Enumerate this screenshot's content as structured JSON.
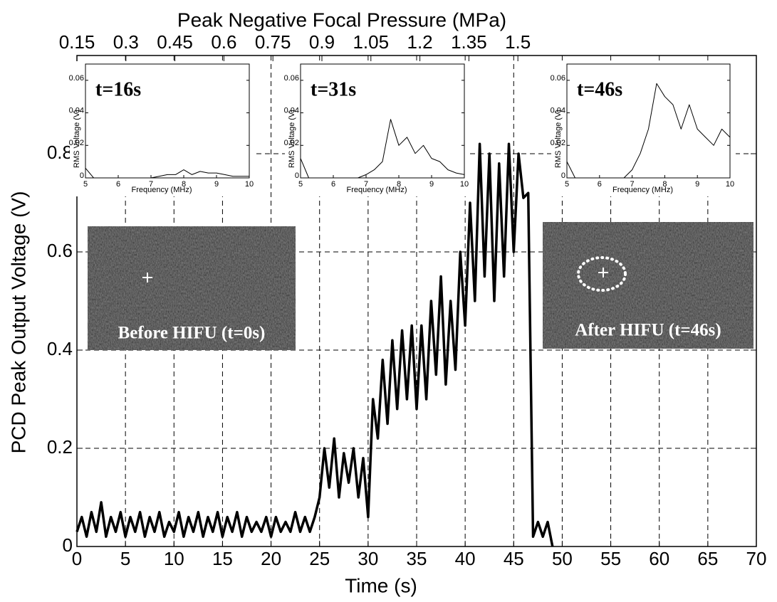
{
  "chart_data": [
    {
      "type": "line",
      "xlabel": "Time (s)",
      "ylabel": "PCD Peak Output Voltage (V)",
      "x2label": "Peak Negative Focal Pressure (MPa)",
      "xlim": [
        0,
        70
      ],
      "xticks": [
        0,
        5,
        10,
        15,
        20,
        25,
        30,
        35,
        40,
        45,
        50,
        55,
        60,
        65,
        70
      ],
      "ylim": [
        0,
        1
      ],
      "yticks": [
        0,
        0.2,
        0.4,
        0.6,
        0.8
      ],
      "x2lim": [
        0.15,
        2.23
      ],
      "x2ticks": [
        0.15,
        0.3,
        0.45,
        0.6,
        0.75,
        0.9,
        1.05,
        1.2,
        1.35,
        1.5
      ],
      "grid": true,
      "color": "#000000",
      "annotations": [
        "Before HIFU (t=0s)",
        "After HIFU (t=46s)"
      ],
      "x": [
        0,
        0.5,
        1,
        1.5,
        2,
        2.5,
        3,
        3.5,
        4,
        4.5,
        5,
        5.5,
        6,
        6.5,
        7,
        7.5,
        8,
        8.5,
        9,
        9.5,
        10,
        10.5,
        11,
        11.5,
        12,
        12.5,
        13,
        13.5,
        14,
        14.5,
        15,
        15.5,
        16,
        16.5,
        17,
        17.5,
        18,
        18.5,
        19,
        19.5,
        20,
        20.5,
        21,
        21.5,
        22,
        22.5,
        23,
        23.5,
        24,
        24.5,
        25,
        25.5,
        26,
        26.5,
        27,
        27.5,
        28,
        28.5,
        29,
        29.5,
        30,
        30.5,
        31,
        31.5,
        32,
        32.5,
        33,
        33.5,
        34,
        34.5,
        35,
        35.5,
        36,
        36.5,
        37,
        37.5,
        38,
        38.5,
        39,
        39.5,
        40,
        40.5,
        41,
        41.5,
        42,
        42.5,
        43,
        43.5,
        44,
        44.5,
        45,
        45.5,
        46,
        46.5,
        47,
        47.5,
        48,
        48.5,
        49
      ],
      "values": [
        0.03,
        0.06,
        0.02,
        0.07,
        0.03,
        0.09,
        0.02,
        0.06,
        0.03,
        0.07,
        0.02,
        0.06,
        0.03,
        0.07,
        0.02,
        0.06,
        0.03,
        0.07,
        0.02,
        0.05,
        0.03,
        0.07,
        0.02,
        0.06,
        0.03,
        0.07,
        0.02,
        0.06,
        0.03,
        0.07,
        0.02,
        0.06,
        0.03,
        0.07,
        0.02,
        0.06,
        0.03,
        0.05,
        0.03,
        0.06,
        0.02,
        0.06,
        0.03,
        0.05,
        0.03,
        0.07,
        0.03,
        0.06,
        0.03,
        0.06,
        0.1,
        0.2,
        0.12,
        0.22,
        0.1,
        0.19,
        0.13,
        0.2,
        0.1,
        0.18,
        0.06,
        0.3,
        0.22,
        0.38,
        0.25,
        0.42,
        0.28,
        0.44,
        0.3,
        0.45,
        0.28,
        0.45,
        0.3,
        0.5,
        0.35,
        0.55,
        0.33,
        0.5,
        0.36,
        0.6,
        0.45,
        0.7,
        0.5,
        0.82,
        0.55,
        0.8,
        0.5,
        0.78,
        0.55,
        0.82,
        0.6,
        0.8,
        0.71,
        0.72,
        0.02,
        0.05,
        0.02,
        0.05,
        0
      ]
    },
    {
      "type": "line",
      "title": "t=16s",
      "xlabel": "Frequency (MHz)",
      "ylabel": "RMS Voltage (V)",
      "color": "#000000",
      "xlim": [
        5,
        10
      ],
      "xticks": [
        5,
        6,
        7,
        8,
        9,
        10
      ],
      "ylim": [
        0,
        0.07
      ],
      "yticks": [
        0,
        0.02,
        0.04,
        0.06
      ],
      "x": [
        5,
        5.25,
        5.5,
        5.75,
        6,
        6.25,
        6.5,
        6.75,
        7,
        7.25,
        7.5,
        7.75,
        8,
        8.25,
        8.5,
        8.75,
        9,
        9.25,
        9.5,
        9.75,
        10
      ],
      "values": [
        0.006,
        0,
        0,
        0,
        0,
        0,
        0,
        0,
        0,
        0.001,
        0.002,
        0.002,
        0.005,
        0.002,
        0.004,
        0.003,
        0.003,
        0.002,
        0.001,
        0.001,
        0.001
      ]
    },
    {
      "type": "line",
      "title": "t=31s",
      "xlabel": "Frequency (MHz)",
      "ylabel": "RMS Voltage (V)",
      "color": "#000000",
      "xlim": [
        5,
        10
      ],
      "xticks": [
        5,
        6,
        7,
        8,
        9,
        10
      ],
      "ylim": [
        0,
        0.07
      ],
      "yticks": [
        0,
        0.02,
        0.04,
        0.06
      ],
      "x": [
        5,
        5.25,
        5.5,
        5.75,
        6,
        6.25,
        6.5,
        6.75,
        7,
        7.25,
        7.5,
        7.75,
        8,
        8.25,
        8.5,
        8.75,
        9,
        9.25,
        9.5,
        9.75,
        10
      ],
      "values": [
        0.012,
        0,
        0,
        0,
        0,
        0,
        0,
        0,
        0.002,
        0.005,
        0.01,
        0.036,
        0.02,
        0.025,
        0.015,
        0.02,
        0.012,
        0.01,
        0.005,
        0.003,
        0.002
      ]
    },
    {
      "type": "line",
      "title": "t=46s",
      "xlabel": "Frequency (MHz)",
      "ylabel": "RMS Voltage (V)",
      "color": "#000000",
      "xlim": [
        5,
        10
      ],
      "xticks": [
        5,
        6,
        7,
        8,
        9,
        10
      ],
      "ylim": [
        0,
        0.07
      ],
      "yticks": [
        0,
        0.02,
        0.04,
        0.06
      ],
      "x": [
        5,
        5.25,
        5.5,
        5.75,
        6,
        6.25,
        6.5,
        6.75,
        7,
        7.25,
        7.5,
        7.75,
        8,
        8.25,
        8.5,
        8.75,
        9,
        9.25,
        9.5,
        9.75,
        10
      ],
      "values": [
        0.01,
        0,
        0,
        0,
        0,
        0,
        0,
        0,
        0.005,
        0.015,
        0.03,
        0.058,
        0.05,
        0.045,
        0.03,
        0.045,
        0.03,
        0.025,
        0.02,
        0.03,
        0.025
      ]
    }
  ]
}
